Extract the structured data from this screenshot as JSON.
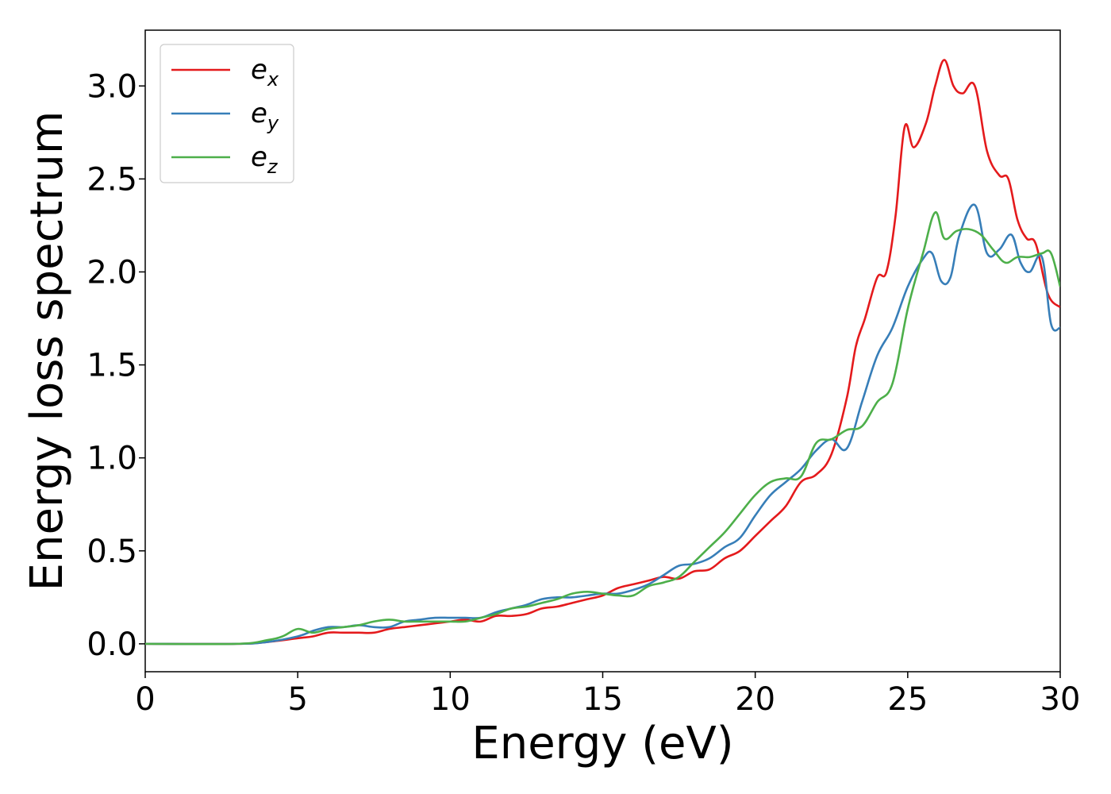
{
  "chart_data": {
    "type": "line",
    "title": "",
    "xlabel": "Energy (eV)",
    "ylabel": "Energy loss spectrum",
    "xlim": [
      0,
      30
    ],
    "ylim": [
      -0.15,
      3.3
    ],
    "xticks": [
      0,
      5,
      10,
      15,
      20,
      25,
      30
    ],
    "xtick_labels": [
      "0",
      "5",
      "10",
      "15",
      "20",
      "25",
      "30"
    ],
    "yticks": [
      0.0,
      0.5,
      1.0,
      1.5,
      2.0,
      2.5,
      3.0
    ],
    "ytick_labels": [
      "0.0",
      "0.5",
      "1.0",
      "1.5",
      "2.0",
      "2.5",
      "3.0"
    ],
    "grid": false,
    "legend_position": "top-left",
    "series": [
      {
        "name": "e",
        "subscript": "x",
        "color": "#e41a1c",
        "x": [
          0,
          3,
          4,
          5,
          5.5,
          6,
          6.5,
          7,
          7.5,
          8,
          8.5,
          9,
          9.5,
          10,
          10.5,
          11,
          11.5,
          12,
          12.5,
          13,
          13.5,
          14,
          14.5,
          15,
          15.5,
          16,
          16.5,
          17,
          17.5,
          18,
          18.5,
          19,
          19.5,
          20,
          20.5,
          21,
          21.5,
          22,
          22.5,
          23,
          23.3,
          23.6,
          24,
          24.3,
          24.6,
          24.9,
          25.2,
          25.6,
          25.9,
          26.2,
          26.5,
          26.8,
          27.2,
          27.6,
          28,
          28.3,
          28.6,
          28.9,
          29.2,
          29.6,
          30
        ],
        "y": [
          0,
          0,
          0.01,
          0.03,
          0.04,
          0.06,
          0.06,
          0.06,
          0.06,
          0.08,
          0.09,
          0.1,
          0.11,
          0.12,
          0.13,
          0.12,
          0.15,
          0.15,
          0.16,
          0.19,
          0.2,
          0.22,
          0.24,
          0.26,
          0.3,
          0.32,
          0.34,
          0.36,
          0.35,
          0.39,
          0.4,
          0.46,
          0.5,
          0.58,
          0.66,
          0.74,
          0.87,
          0.91,
          1.02,
          1.32,
          1.6,
          1.75,
          1.97,
          2.0,
          2.3,
          2.78,
          2.67,
          2.8,
          3.0,
          3.14,
          3.0,
          2.96,
          3.0,
          2.65,
          2.52,
          2.5,
          2.28,
          2.18,
          2.15,
          1.88,
          1.81
        ]
      },
      {
        "name": "e",
        "subscript": "y",
        "color": "#377eb8",
        "x": [
          0,
          3,
          4,
          5,
          5.5,
          6,
          6.5,
          7,
          7.5,
          8,
          8.5,
          9,
          9.5,
          10,
          10.5,
          11,
          11.5,
          12,
          12.5,
          13,
          13.5,
          14,
          14.5,
          15,
          15.5,
          16,
          16.5,
          17,
          17.5,
          18,
          18.5,
          19,
          19.5,
          20,
          20.5,
          21,
          21.5,
          22,
          22.5,
          23,
          23.5,
          24,
          24.5,
          25,
          25.5,
          25.8,
          26.1,
          26.4,
          26.7,
          27.2,
          27.6,
          28,
          28.4,
          28.7,
          29,
          29.4,
          29.7,
          30
        ],
        "y": [
          0,
          0,
          0.01,
          0.04,
          0.07,
          0.09,
          0.09,
          0.1,
          0.09,
          0.09,
          0.12,
          0.13,
          0.14,
          0.14,
          0.14,
          0.14,
          0.17,
          0.19,
          0.21,
          0.24,
          0.25,
          0.25,
          0.26,
          0.27,
          0.27,
          0.29,
          0.32,
          0.37,
          0.42,
          0.43,
          0.46,
          0.52,
          0.57,
          0.69,
          0.8,
          0.87,
          0.94,
          1.04,
          1.1,
          1.05,
          1.3,
          1.55,
          1.7,
          1.92,
          2.07,
          2.1,
          1.95,
          1.97,
          2.2,
          2.36,
          2.1,
          2.12,
          2.2,
          2.05,
          2.0,
          2.08,
          1.72,
          1.7
        ]
      },
      {
        "name": "e",
        "subscript": "z",
        "color": "#4daf4a",
        "x": [
          0,
          3,
          4,
          4.5,
          5,
          5.5,
          6,
          6.5,
          7,
          7.5,
          8,
          8.5,
          9,
          9.5,
          10,
          10.5,
          11,
          11.5,
          12,
          12.5,
          13,
          13.5,
          14,
          14.5,
          15,
          15.5,
          16,
          16.5,
          17,
          17.5,
          18,
          18.5,
          19,
          19.5,
          20,
          20.5,
          21,
          21.5,
          22,
          22.5,
          23,
          23.5,
          24,
          24.5,
          25,
          25.5,
          25.9,
          26.2,
          26.6,
          27,
          27.4,
          27.8,
          28.2,
          28.6,
          29,
          29.4,
          29.7,
          30
        ],
        "y": [
          0,
          0,
          0.02,
          0.04,
          0.08,
          0.06,
          0.08,
          0.09,
          0.1,
          0.12,
          0.13,
          0.12,
          0.12,
          0.12,
          0.12,
          0.12,
          0.14,
          0.16,
          0.19,
          0.2,
          0.22,
          0.24,
          0.27,
          0.28,
          0.27,
          0.26,
          0.26,
          0.31,
          0.33,
          0.36,
          0.44,
          0.52,
          0.6,
          0.7,
          0.8,
          0.87,
          0.89,
          0.9,
          1.08,
          1.1,
          1.15,
          1.17,
          1.3,
          1.4,
          1.8,
          2.1,
          2.32,
          2.18,
          2.22,
          2.23,
          2.2,
          2.12,
          2.05,
          2.08,
          2.08,
          2.1,
          2.1,
          1.92
        ]
      }
    ]
  }
}
